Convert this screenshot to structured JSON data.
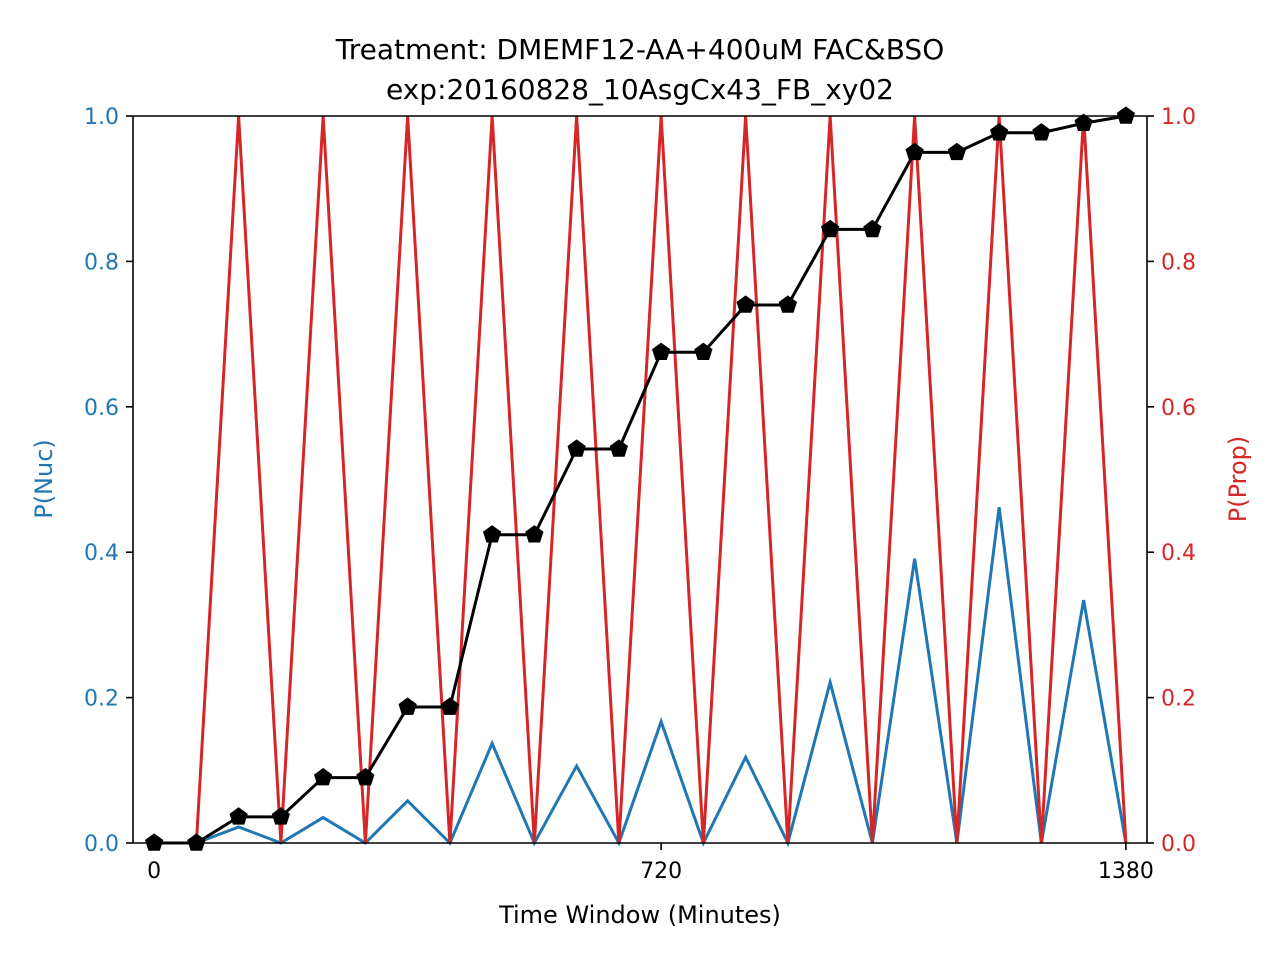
{
  "chart_data": {
    "type": "line",
    "title_line1": "Treatment: DMEMF12-AA+400uM FAC&BSO",
    "title_line2": "exp:20160828_10AsgCx43_FB_xy02",
    "xlabel": "Time Window (Minutes)",
    "ylabel_left": "P(Nuc)",
    "ylabel_right": "P(Prop)",
    "xlim": [
      -30,
      1410
    ],
    "ylim": [
      0,
      1
    ],
    "x_ticks": [
      0,
      720,
      1380
    ],
    "y_ticks": [
      0.0,
      0.2,
      0.4,
      0.6,
      0.8,
      1.0
    ],
    "y_tick_labels": [
      "0.0",
      "0.2",
      "0.4",
      "0.6",
      "0.8",
      "1.0"
    ],
    "grid": false,
    "colors": {
      "left_axis": "#1f77b4",
      "right_axis": "#d62728",
      "cumulative": "#000000"
    },
    "x": [
      0,
      60,
      120,
      180,
      240,
      300,
      360,
      420,
      480,
      540,
      600,
      660,
      720,
      780,
      840,
      900,
      960,
      1020,
      1080,
      1140,
      1200,
      1260,
      1320,
      1380
    ],
    "series": [
      {
        "axis": "left",
        "color": "#1f77b4",
        "marker": "none",
        "values": [
          0,
          0,
          0.022,
          0,
          0.035,
          0,
          0.058,
          0,
          0.137,
          0,
          0.106,
          0,
          0.167,
          0,
          0.118,
          0,
          0.221,
          0,
          0.391,
          0,
          0.462,
          0,
          0.334,
          0
        ]
      },
      {
        "axis": "right",
        "color": "#d62728",
        "marker": "none",
        "values": [
          0,
          0,
          1,
          0,
          1,
          0,
          1,
          0,
          1,
          0,
          1,
          0,
          1,
          0,
          1,
          0,
          1,
          0,
          1,
          0,
          1,
          0,
          1,
          0
        ]
      },
      {
        "axis": "left",
        "color": "#000000",
        "marker": "pentagon",
        "values": [
          0,
          0,
          0.036,
          0.036,
          0.09,
          0.09,
          0.187,
          0.187,
          0.424,
          0.424,
          0.542,
          0.542,
          0.675,
          0.675,
          0.74,
          0.74,
          0.844,
          0.844,
          0.95,
          0.95,
          0.977,
          0.977,
          0.99,
          1.0
        ]
      }
    ]
  }
}
